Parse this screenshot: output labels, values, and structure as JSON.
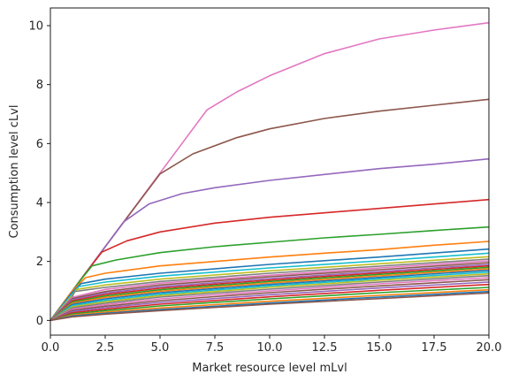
{
  "chart_data": {
    "type": "line",
    "xlabel": "Market resource level mLvl",
    "ylabel": "Consumption level cLvl",
    "xlim": [
      0,
      20
    ],
    "ylim": [
      -0.5,
      10.6
    ],
    "x_ticks": [
      0,
      2.5,
      5,
      7.5,
      10,
      12.5,
      15,
      17.5,
      20
    ],
    "x_tick_labels": [
      "0.0",
      "2.5",
      "5.0",
      "7.5",
      "10.0",
      "12.5",
      "15.0",
      "17.5",
      "20.0"
    ],
    "y_ticks": [
      0,
      2,
      4,
      6,
      8,
      10
    ],
    "y_tick_labels": [
      "0",
      "2",
      "4",
      "6",
      "8",
      "10"
    ],
    "grid": false,
    "legend": "none",
    "series": [
      {
        "color": "#e377c2",
        "x": [
          0,
          2.5,
          5,
          7.14,
          8.5,
          10,
          12.5,
          15,
          17.5,
          20
        ],
        "y": [
          0,
          2.5,
          5,
          7.14,
          7.75,
          8.3,
          9.05,
          9.55,
          9.85,
          10.1
        ]
      },
      {
        "color": "#8c564b",
        "x": [
          0,
          2.5,
          5,
          6.5,
          8.5,
          10,
          12.5,
          15,
          17.5,
          20
        ],
        "y": [
          0,
          2.5,
          4.97,
          5.65,
          6.2,
          6.5,
          6.85,
          7.1,
          7.3,
          7.5
        ]
      },
      {
        "color": "#9467bd",
        "x": [
          0,
          2,
          3.35,
          4.5,
          6,
          7.5,
          10,
          12.5,
          15,
          17.5,
          20
        ],
        "y": [
          0,
          2,
          3.35,
          3.95,
          4.3,
          4.5,
          4.75,
          4.95,
          5.15,
          5.3,
          5.48
        ]
      },
      {
        "color": "#d62728",
        "x": [
          0,
          1.5,
          2.35,
          3.5,
          5,
          7.5,
          10,
          12.5,
          15,
          17.5,
          20
        ],
        "y": [
          0,
          1.5,
          2.32,
          2.7,
          3.0,
          3.3,
          3.5,
          3.65,
          3.8,
          3.95,
          4.1
        ]
      },
      {
        "color": "#2ca02c",
        "x": [
          0,
          1.25,
          1.9,
          3,
          5,
          7.5,
          10,
          12.5,
          15,
          17.5,
          20
        ],
        "y": [
          0,
          1.25,
          1.85,
          2.05,
          2.3,
          2.5,
          2.65,
          2.8,
          2.92,
          3.05,
          3.17
        ]
      },
      {
        "color": "#ff7f0e",
        "x": [
          0,
          1,
          1.6,
          2.5,
          5,
          7.5,
          10,
          12.5,
          15,
          17.5,
          20
        ],
        "y": [
          0,
          1.0,
          1.45,
          1.6,
          1.85,
          2.0,
          2.15,
          2.28,
          2.4,
          2.55,
          2.68
        ]
      },
      {
        "color": "#1f77b4",
        "x": [
          0,
          1,
          1.4,
          2.5,
          5,
          10,
          15,
          20
        ],
        "y": [
          0,
          0.95,
          1.25,
          1.4,
          1.6,
          1.9,
          2.15,
          2.42
        ]
      },
      {
        "color": "#17becf",
        "x": [
          0,
          1,
          1.3,
          2.5,
          5,
          10,
          15,
          20
        ],
        "y": [
          0,
          0.9,
          1.15,
          1.3,
          1.5,
          1.78,
          2.02,
          2.28
        ]
      },
      {
        "color": "#bcbd22",
        "x": [
          0,
          1,
          1.2,
          2.5,
          5,
          10,
          15,
          20
        ],
        "y": [
          0,
          0.85,
          1.05,
          1.2,
          1.4,
          1.68,
          1.92,
          2.16
        ]
      },
      {
        "color": "#7f7f7f",
        "x": [
          0,
          1,
          1.1,
          2.5,
          5,
          10,
          15,
          20
        ],
        "y": [
          0,
          0.8,
          0.98,
          1.12,
          1.32,
          1.6,
          1.84,
          2.08
        ]
      },
      {
        "color": "#e377c2",
        "x": [
          0,
          1,
          2.5,
          5,
          10,
          15,
          20
        ],
        "y": [
          0,
          0.78,
          1.05,
          1.26,
          1.53,
          1.78,
          2.02
        ]
      },
      {
        "color": "#8c564b",
        "x": [
          0,
          1,
          2.5,
          5,
          10,
          15,
          20
        ],
        "y": [
          0,
          0.74,
          0.98,
          1.2,
          1.48,
          1.72,
          1.96
        ]
      },
      {
        "color": "#9467bd",
        "x": [
          0,
          1,
          2.5,
          5,
          10,
          15,
          20
        ],
        "y": [
          0,
          0.7,
          0.93,
          1.14,
          1.42,
          1.66,
          1.9
        ]
      },
      {
        "color": "#d62728",
        "x": [
          0,
          1,
          2.5,
          5,
          10,
          15,
          20
        ],
        "y": [
          0,
          0.66,
          0.88,
          1.09,
          1.37,
          1.61,
          1.85
        ]
      },
      {
        "color": "#2ca02c",
        "x": [
          0,
          1,
          2.5,
          5,
          10,
          15,
          20
        ],
        "y": [
          0,
          0.62,
          0.83,
          1.04,
          1.32,
          1.56,
          1.8
        ]
      },
      {
        "color": "#ff7f0e",
        "x": [
          0,
          1,
          2.5,
          5,
          10,
          15,
          20
        ],
        "y": [
          0,
          0.58,
          0.78,
          0.99,
          1.27,
          1.51,
          1.75
        ]
      },
      {
        "color": "#1f77b4",
        "x": [
          0,
          1,
          2.5,
          5,
          10,
          15,
          20
        ],
        "y": [
          0,
          0.54,
          0.73,
          0.94,
          1.22,
          1.46,
          1.7
        ]
      },
      {
        "color": "#17becf",
        "x": [
          0,
          1,
          2.5,
          5,
          10,
          15,
          20
        ],
        "y": [
          0,
          0.5,
          0.68,
          0.89,
          1.17,
          1.41,
          1.64
        ]
      },
      {
        "color": "#bcbd22",
        "x": [
          0,
          1,
          2.5,
          5,
          10,
          15,
          20
        ],
        "y": [
          0,
          0.46,
          0.63,
          0.84,
          1.12,
          1.36,
          1.58
        ]
      },
      {
        "color": "#7f7f7f",
        "x": [
          0,
          1,
          2.5,
          5,
          10,
          15,
          20
        ],
        "y": [
          0,
          0.42,
          0.58,
          0.79,
          1.06,
          1.3,
          1.52
        ]
      },
      {
        "color": "#e377c2",
        "x": [
          0,
          1,
          2.5,
          5,
          10,
          15,
          20
        ],
        "y": [
          0,
          0.38,
          0.53,
          0.73,
          1.0,
          1.24,
          1.45
        ]
      },
      {
        "color": "#8c564b",
        "x": [
          0,
          1,
          2.5,
          5,
          10,
          15,
          20
        ],
        "y": [
          0,
          0.34,
          0.48,
          0.67,
          0.94,
          1.17,
          1.38
        ]
      },
      {
        "color": "#9467bd",
        "x": [
          0,
          1,
          2.5,
          5,
          10,
          15,
          20
        ],
        "y": [
          0,
          0.3,
          0.43,
          0.61,
          0.87,
          1.1,
          1.3
        ]
      },
      {
        "color": "#d62728",
        "x": [
          0,
          1,
          2.5,
          5,
          10,
          15,
          20
        ],
        "y": [
          0,
          0.26,
          0.38,
          0.55,
          0.8,
          1.02,
          1.22
        ]
      },
      {
        "color": "#2ca02c",
        "x": [
          0,
          1,
          2.5,
          5,
          10,
          15,
          20
        ],
        "y": [
          0,
          0.22,
          0.33,
          0.49,
          0.73,
          0.94,
          1.12
        ]
      },
      {
        "color": "#ff7f0e",
        "x": [
          0,
          1,
          2.5,
          5,
          10,
          15,
          20
        ],
        "y": [
          0,
          0.18,
          0.28,
          0.42,
          0.65,
          0.85,
          1.04
        ]
      },
      {
        "color": "#1f77b4",
        "x": [
          0,
          1,
          2.5,
          5,
          10,
          15,
          20
        ],
        "y": [
          0,
          0.15,
          0.24,
          0.37,
          0.59,
          0.79,
          0.98
        ]
      },
      {
        "color": "#8c564b",
        "x": [
          0,
          1,
          2.5,
          5,
          10,
          15,
          20
        ],
        "y": [
          0,
          0.12,
          0.21,
          0.33,
          0.55,
          0.74,
          0.93
        ]
      }
    ]
  }
}
